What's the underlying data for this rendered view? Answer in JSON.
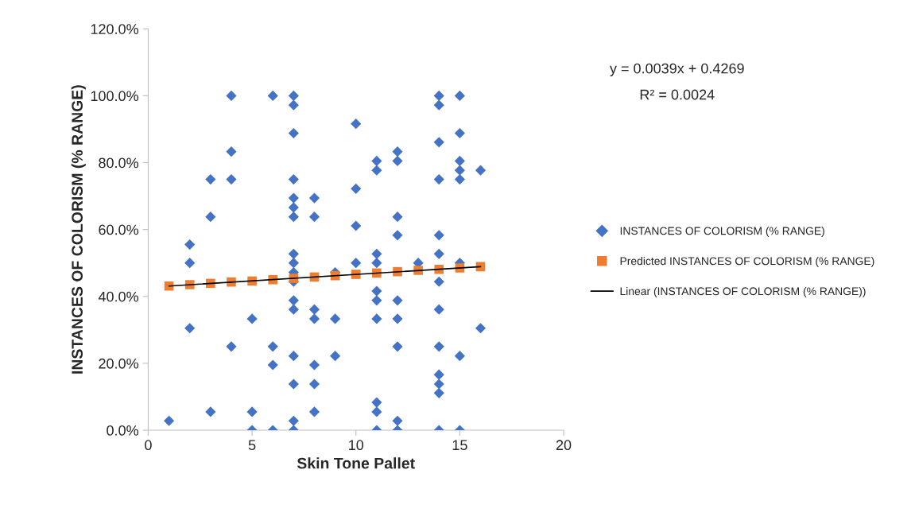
{
  "chart_data": {
    "type": "scatter",
    "xlabel": "Skin Tone Pallet",
    "ylabel": "INSTANCES OF COLORISM (% RANGE)",
    "xlim": [
      0,
      20
    ],
    "xticks": [
      0,
      5,
      10,
      15,
      20
    ],
    "ylim": [
      0,
      120
    ],
    "yticks": [
      {
        "value": 0,
        "label": "0.0%"
      },
      {
        "value": 20,
        "label": "20.0%"
      },
      {
        "value": 40,
        "label": "40.0%"
      },
      {
        "value": 60,
        "label": "60.0%"
      },
      {
        "value": 80,
        "label": "80.0%"
      },
      {
        "value": 100,
        "label": "100.0%"
      },
      {
        "value": 120,
        "label": "120.0%"
      }
    ],
    "grid": false,
    "legend": "right",
    "annotations": [
      "y = 0.0039x + 0.4269",
      "R² = 0.0024"
    ],
    "series": [
      {
        "name": "INSTANCES OF COLORISM (% RANGE)",
        "marker": "diamond",
        "color": "#4472c4",
        "x": [
          1,
          2,
          2,
          2,
          3,
          3,
          3,
          4,
          4,
          4,
          4,
          5,
          5,
          5,
          6,
          6,
          6,
          6,
          7,
          7,
          7,
          7,
          7,
          7,
          7,
          7,
          7,
          7,
          7,
          7,
          7,
          7,
          7,
          7,
          7,
          8,
          8,
          8,
          8,
          8,
          8,
          8,
          9,
          9,
          9,
          10,
          10,
          10,
          10,
          11,
          11,
          11,
          11,
          11,
          11,
          11,
          11,
          11,
          11,
          12,
          12,
          12,
          12,
          12,
          12,
          12,
          12,
          12,
          13,
          14,
          14,
          14,
          14,
          14,
          14,
          14,
          14,
          14,
          14,
          14,
          14,
          14,
          15,
          15,
          15,
          15,
          15,
          15,
          15,
          15,
          16,
          16
        ],
        "values": [
          2.8,
          55.5,
          50,
          30.5,
          75,
          63.8,
          5.5,
          100,
          83.3,
          75,
          25,
          33.3,
          5.5,
          0,
          100,
          25,
          19.5,
          0,
          100,
          97.2,
          88.8,
          75,
          69.4,
          66.6,
          63.8,
          52.7,
          50,
          47.2,
          44.4,
          38.8,
          36.1,
          22.2,
          13.8,
          2.8,
          0,
          69.4,
          63.8,
          36.1,
          33.3,
          19.5,
          13.8,
          5.5,
          47.2,
          33.3,
          22.2,
          91.6,
          72.2,
          61.1,
          50,
          80.5,
          77.7,
          52.7,
          50,
          41.6,
          38.8,
          33.3,
          8.3,
          5.5,
          0,
          83.3,
          80.5,
          63.8,
          58.3,
          38.8,
          33.3,
          25,
          2.8,
          0,
          50,
          100,
          97.2,
          86.1,
          75,
          58.3,
          52.7,
          44.4,
          36.1,
          25,
          16.6,
          13.8,
          11.1,
          0,
          100,
          88.8,
          80.5,
          77.7,
          75,
          50,
          22.2,
          0,
          77.7,
          30.5
        ]
      },
      {
        "name": "Predicted INSTANCES OF COLORISM (% RANGE)",
        "marker": "square",
        "color": "#ed7d31",
        "x": [
          1,
          2,
          3,
          4,
          5,
          6,
          7,
          8,
          9,
          10,
          11,
          12,
          13,
          14,
          15,
          16
        ],
        "values": [
          43.1,
          43.5,
          43.9,
          44.3,
          44.6,
          45.0,
          45.4,
          45.8,
          46.2,
          46.6,
          47.0,
          47.4,
          47.8,
          48.1,
          48.5,
          48.9
        ]
      },
      {
        "name": "Linear (INSTANCES OF COLORISM (% RANGE))",
        "type": "line",
        "marker": "none",
        "line_style": "solid",
        "color": "#000000",
        "x": [
          1,
          16
        ],
        "values": [
          43.1,
          48.9
        ]
      }
    ]
  }
}
